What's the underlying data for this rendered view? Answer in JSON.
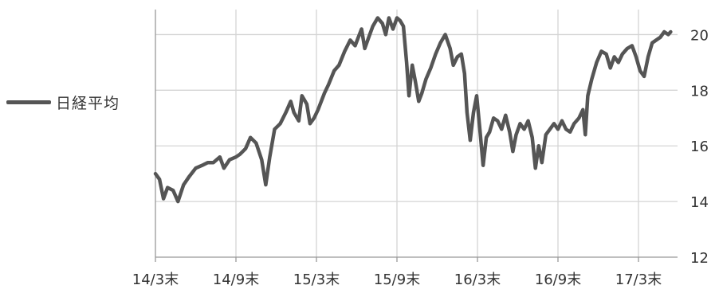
{
  "chart_data": {
    "type": "line",
    "title": "",
    "xlabel": "",
    "ylabel": "",
    "x_ticks": [
      "14/3末",
      "14/9末",
      "15/3末",
      "15/9末",
      "16/3末",
      "16/9末",
      "17/3末"
    ],
    "y_ticks": [
      "12",
      "14",
      "16",
      "18",
      "20"
    ],
    "ylim": [
      12,
      20.9
    ],
    "grid": true,
    "legend_position": "left",
    "series": [
      {
        "name": "日経平均",
        "color": "#555555",
        "points": [
          [
            0.0,
            15.0
          ],
          [
            0.05,
            14.8
          ],
          [
            0.1,
            14.1
          ],
          [
            0.15,
            14.5
          ],
          [
            0.22,
            14.4
          ],
          [
            0.28,
            14.0
          ],
          [
            0.35,
            14.6
          ],
          [
            0.42,
            14.9
          ],
          [
            0.5,
            15.2
          ],
          [
            0.58,
            15.3
          ],
          [
            0.65,
            15.4
          ],
          [
            0.72,
            15.4
          ],
          [
            0.8,
            15.6
          ],
          [
            0.85,
            15.2
          ],
          [
            0.92,
            15.5
          ],
          [
            1.0,
            15.6
          ],
          [
            1.05,
            15.7
          ],
          [
            1.12,
            15.9
          ],
          [
            1.18,
            16.3
          ],
          [
            1.25,
            16.1
          ],
          [
            1.32,
            15.5
          ],
          [
            1.37,
            14.6
          ],
          [
            1.42,
            15.6
          ],
          [
            1.48,
            16.6
          ],
          [
            1.55,
            16.8
          ],
          [
            1.62,
            17.2
          ],
          [
            1.68,
            17.6
          ],
          [
            1.72,
            17.2
          ],
          [
            1.78,
            16.9
          ],
          [
            1.82,
            17.8
          ],
          [
            1.88,
            17.5
          ],
          [
            1.92,
            16.8
          ],
          [
            1.97,
            17.0
          ],
          [
            2.02,
            17.3
          ],
          [
            2.1,
            17.9
          ],
          [
            2.15,
            18.2
          ],
          [
            2.22,
            18.7
          ],
          [
            2.28,
            18.9
          ],
          [
            2.35,
            19.4
          ],
          [
            2.42,
            19.8
          ],
          [
            2.48,
            19.6
          ],
          [
            2.52,
            19.9
          ],
          [
            2.56,
            20.2
          ],
          [
            2.6,
            19.5
          ],
          [
            2.65,
            19.9
          ],
          [
            2.7,
            20.3
          ],
          [
            2.76,
            20.6
          ],
          [
            2.82,
            20.4
          ],
          [
            2.86,
            20.0
          ],
          [
            2.9,
            20.6
          ],
          [
            2.95,
            20.2
          ],
          [
            3.0,
            20.6
          ],
          [
            3.04,
            20.5
          ],
          [
            3.08,
            20.3
          ],
          [
            3.12,
            19.0
          ],
          [
            3.15,
            17.8
          ],
          [
            3.19,
            18.9
          ],
          [
            3.23,
            18.3
          ],
          [
            3.27,
            17.6
          ],
          [
            3.31,
            17.9
          ],
          [
            3.36,
            18.4
          ],
          [
            3.42,
            18.8
          ],
          [
            3.48,
            19.3
          ],
          [
            3.54,
            19.7
          ],
          [
            3.6,
            20.0
          ],
          [
            3.66,
            19.5
          ],
          [
            3.7,
            18.9
          ],
          [
            3.75,
            19.2
          ],
          [
            3.8,
            19.3
          ],
          [
            3.84,
            18.6
          ],
          [
            3.87,
            17.2
          ],
          [
            3.91,
            16.2
          ],
          [
            3.95,
            17.2
          ],
          [
            3.99,
            17.8
          ],
          [
            4.03,
            16.6
          ],
          [
            4.07,
            15.3
          ],
          [
            4.11,
            16.3
          ],
          [
            4.15,
            16.5
          ],
          [
            4.2,
            17.0
          ],
          [
            4.25,
            16.9
          ],
          [
            4.3,
            16.6
          ],
          [
            4.35,
            17.1
          ],
          [
            4.4,
            16.5
          ],
          [
            4.44,
            15.8
          ],
          [
            4.48,
            16.4
          ],
          [
            4.53,
            16.8
          ],
          [
            4.58,
            16.6
          ],
          [
            4.63,
            16.9
          ],
          [
            4.68,
            16.3
          ],
          [
            4.72,
            15.2
          ],
          [
            4.76,
            16.0
          ],
          [
            4.8,
            15.4
          ],
          [
            4.85,
            16.4
          ],
          [
            4.9,
            16.6
          ],
          [
            4.95,
            16.8
          ],
          [
            5.0,
            16.6
          ],
          [
            5.05,
            16.9
          ],
          [
            5.1,
            16.6
          ],
          [
            5.15,
            16.5
          ],
          [
            5.2,
            16.8
          ],
          [
            5.26,
            17.0
          ],
          [
            5.31,
            17.3
          ],
          [
            5.34,
            16.4
          ],
          [
            5.37,
            17.8
          ],
          [
            5.42,
            18.4
          ],
          [
            5.48,
            19.0
          ],
          [
            5.54,
            19.4
          ],
          [
            5.6,
            19.3
          ],
          [
            5.65,
            18.8
          ],
          [
            5.7,
            19.2
          ],
          [
            5.75,
            19.0
          ],
          [
            5.8,
            19.3
          ],
          [
            5.86,
            19.5
          ],
          [
            5.92,
            19.6
          ],
          [
            5.97,
            19.2
          ],
          [
            6.02,
            18.7
          ],
          [
            6.07,
            18.5
          ],
          [
            6.12,
            19.2
          ],
          [
            6.17,
            19.7
          ],
          [
            6.22,
            19.8
          ],
          [
            6.27,
            19.9
          ],
          [
            6.32,
            20.1
          ],
          [
            6.37,
            20.0
          ],
          [
            6.4,
            20.1
          ]
        ]
      }
    ]
  }
}
